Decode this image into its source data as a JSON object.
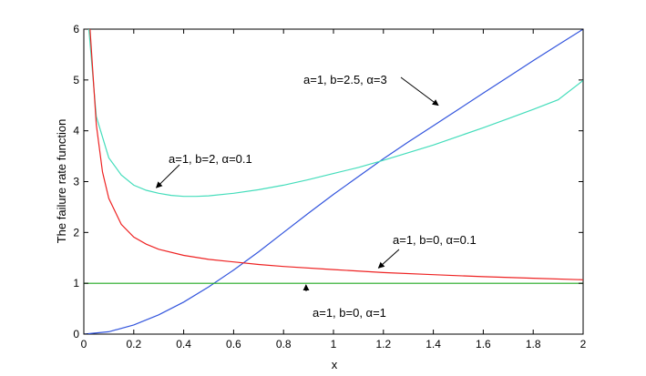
{
  "chart_data": {
    "type": "line",
    "title": "",
    "xlabel": "x",
    "ylabel": "The failure rate function",
    "xlim": [
      0,
      2
    ],
    "ylim": [
      0,
      6
    ],
    "xticks": [
      0,
      0.2,
      0.4,
      0.6,
      0.8,
      1,
      1.2,
      1.4,
      1.6,
      1.8,
      2
    ],
    "xtick_labels": [
      "0",
      "0.2",
      "0.4",
      "0.6",
      "0.8",
      "1",
      "1.2",
      "1.4",
      "1.6",
      "1.8",
      "2"
    ],
    "yticks": [
      0,
      1,
      2,
      3,
      4,
      5,
      6
    ],
    "ytick_labels": [
      "0",
      "1",
      "2",
      "3",
      "4",
      "5",
      "6"
    ],
    "grid": false,
    "legend": "none",
    "series": [
      {
        "label": "a=1, b=2.5, α=3",
        "color": "#3355dd",
        "x": [
          0,
          0.1,
          0.2,
          0.3,
          0.4,
          0.5,
          0.6,
          0.7,
          0.8,
          0.9,
          1.0,
          1.1,
          1.2,
          1.3,
          1.4,
          1.5,
          1.6,
          1.7,
          1.8,
          1.9,
          2.0
        ],
        "y": [
          0.0,
          0.047,
          0.18,
          0.38,
          0.63,
          0.93,
          1.26,
          1.62,
          2.0,
          2.38,
          2.75,
          3.1,
          3.45,
          3.78,
          4.1,
          4.42,
          4.74,
          5.06,
          5.38,
          5.69,
          6.0
        ]
      },
      {
        "label": "a=1, b=2, α=0.1",
        "color": "#44ddbb",
        "x": [
          0.02,
          0.05,
          0.1,
          0.15,
          0.2,
          0.25,
          0.3,
          0.35,
          0.4,
          0.45,
          0.5,
          0.6,
          0.7,
          0.8,
          0.9,
          1.0,
          1.1,
          1.2,
          1.3,
          1.4,
          1.5,
          1.6,
          1.7,
          1.8,
          1.9,
          2.0
        ],
        "y": [
          6.0,
          4.28,
          3.47,
          3.13,
          2.93,
          2.83,
          2.77,
          2.73,
          2.71,
          2.71,
          2.72,
          2.77,
          2.84,
          2.93,
          3.04,
          3.16,
          3.28,
          3.42,
          3.57,
          3.72,
          3.89,
          4.06,
          4.24,
          4.42,
          4.61,
          4.99
        ]
      },
      {
        "label": "a=1, b=0, α=0.1",
        "color": "#ee2222",
        "x": [
          0.025,
          0.05,
          0.075,
          0.1,
          0.15,
          0.2,
          0.25,
          0.3,
          0.4,
          0.5,
          0.6,
          0.7,
          0.8,
          1.0,
          1.2,
          1.4,
          1.6,
          1.8,
          2.0
        ],
        "y": [
          6.0,
          4.12,
          3.19,
          2.67,
          2.16,
          1.91,
          1.77,
          1.67,
          1.55,
          1.47,
          1.42,
          1.37,
          1.33,
          1.27,
          1.21,
          1.17,
          1.13,
          1.1,
          1.07
        ]
      },
      {
        "label": "a=1, b=0, α=1",
        "color": "#22aa22",
        "x": [
          0,
          2
        ],
        "y": [
          1,
          1
        ]
      }
    ],
    "annotations": [
      {
        "text": "a=1, b=2.5, α=3",
        "arrow_to": [
          1.42,
          4.5
        ]
      },
      {
        "text": "a=1, b=2, α=0.1",
        "arrow_to": [
          0.29,
          2.88
        ]
      },
      {
        "text": "a=1, b=0, α=0.1",
        "arrow_to": [
          1.18,
          1.3
        ]
      },
      {
        "text": "a=1, b=0, α=1",
        "arrow_to": [
          0.89,
          0.97
        ]
      }
    ]
  }
}
